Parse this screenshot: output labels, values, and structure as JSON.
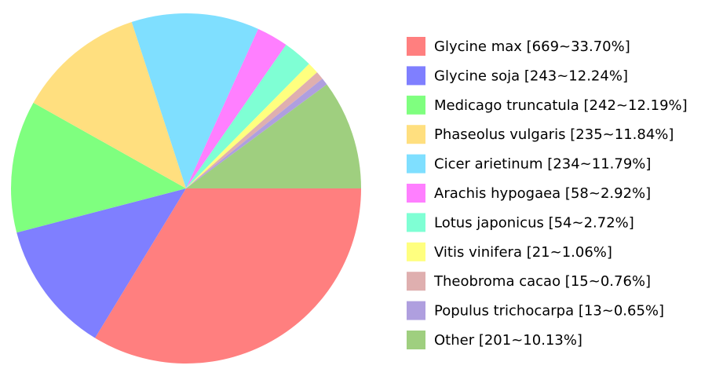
{
  "chart_data": {
    "type": "pie",
    "categories": [
      "Glycine max [669~33.70%]",
      "Glycine soja [243~12.24%]",
      "Medicago truncatula [242~12.19%]",
      "Phaseolus vulgaris [235~11.84%]",
      "Cicer arietinum [234~11.79%]",
      "Arachis hypogaea [58~2.92%]",
      "Lotus japonicus [54~2.72%]",
      "Vitis vinifera [21~1.06%]",
      "Theobroma cacao [15~0.76%]",
      "Populus trichocarpa [13~0.65%]",
      "Other [201~10.13%]"
    ],
    "values": [
      669,
      243,
      242,
      235,
      234,
      58,
      54,
      21,
      15,
      13,
      201
    ],
    "colors": [
      "#ff7f7f",
      "#7f7fff",
      "#7fff7f",
      "#ffdf7f",
      "#7fdfff",
      "#ff7fff",
      "#7fffd4",
      "#ffff7f",
      "#dfafaf",
      "#af9fdf",
      "#9fcf7f"
    ],
    "legend": "right"
  }
}
